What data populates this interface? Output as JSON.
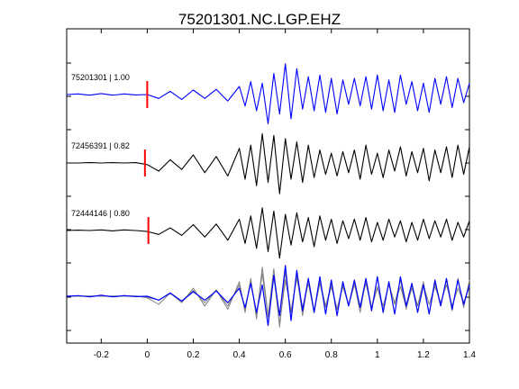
{
  "chart_data": {
    "type": "line",
    "title": "75201301.NC.LGP.EHZ",
    "xlabel": "",
    "ylabel": "",
    "xlim": [
      -0.35,
      1.4
    ],
    "xticks": [
      -0.2,
      0,
      0.2,
      0.4,
      0.6,
      0.8,
      1,
      1.2,
      1.4
    ],
    "xtick_labels": [
      "-0.2",
      "0",
      "0.2",
      "0.4",
      "0.6",
      "0.8",
      "1",
      "1.2",
      "1.4"
    ],
    "grid": false,
    "pick_marker": {
      "x": 0,
      "color": "#ff0000"
    },
    "colors": {
      "target": "#0000ff",
      "match": "#000000",
      "overlay_match": "#808080",
      "pick": "#ff0000"
    },
    "series": [
      {
        "name": "75201301 | 1.00",
        "label": "75201301 | 1.00",
        "color": "#0000ff",
        "x": [
          -0.35,
          -0.3,
          -0.25,
          -0.2,
          -0.15,
          -0.1,
          -0.05,
          0,
          0.05,
          0.1,
          0.15,
          0.2,
          0.25,
          0.3,
          0.35,
          0.4,
          0.425,
          0.45,
          0.475,
          0.5,
          0.525,
          0.55,
          0.575,
          0.6,
          0.625,
          0.65,
          0.675,
          0.7,
          0.725,
          0.75,
          0.775,
          0.8,
          0.825,
          0.85,
          0.875,
          0.9,
          0.925,
          0.95,
          0.975,
          1.0,
          1.025,
          1.05,
          1.075,
          1.1,
          1.125,
          1.15,
          1.175,
          1.2,
          1.225,
          1.25,
          1.275,
          1.3,
          1.325,
          1.35,
          1.375,
          1.4
        ],
        "y": [
          0.0,
          0.02,
          -0.02,
          0.03,
          -0.02,
          0.02,
          -0.01,
          0.0,
          -0.12,
          0.1,
          -0.15,
          0.14,
          -0.12,
          0.16,
          -0.2,
          0.25,
          -0.35,
          0.4,
          -0.5,
          0.35,
          -0.9,
          0.65,
          -0.6,
          0.95,
          -0.75,
          0.8,
          -0.45,
          0.55,
          -0.5,
          0.6,
          -0.55,
          0.5,
          -0.6,
          0.45,
          -0.3,
          0.5,
          -0.35,
          0.55,
          -0.45,
          0.6,
          -0.5,
          0.45,
          -0.55,
          0.6,
          -0.3,
          0.4,
          -0.5,
          0.35,
          -0.55,
          0.5,
          -0.3,
          0.55,
          -0.4,
          0.5,
          -0.25,
          0.35
        ]
      },
      {
        "name": "72456391 | 0.82",
        "label": "72456391 | 0.82",
        "color": "#000000",
        "x": [
          -0.35,
          -0.3,
          -0.25,
          -0.2,
          -0.15,
          -0.1,
          -0.05,
          0,
          0.05,
          0.1,
          0.15,
          0.2,
          0.25,
          0.3,
          0.35,
          0.4,
          0.425,
          0.45,
          0.475,
          0.5,
          0.525,
          0.55,
          0.575,
          0.6,
          0.625,
          0.65,
          0.675,
          0.7,
          0.725,
          0.75,
          0.775,
          0.8,
          0.825,
          0.85,
          0.875,
          0.9,
          0.925,
          0.95,
          0.975,
          1.0,
          1.025,
          1.05,
          1.075,
          1.1,
          1.125,
          1.15,
          1.175,
          1.2,
          1.225,
          1.25,
          1.275,
          1.3,
          1.325,
          1.35,
          1.375,
          1.4
        ],
        "y": [
          0.0,
          0.0,
          0.01,
          0.0,
          0.01,
          0.0,
          0.01,
          -0.05,
          -0.25,
          0.1,
          -0.2,
          0.25,
          -0.3,
          0.2,
          -0.4,
          0.45,
          -0.5,
          0.55,
          -0.7,
          0.9,
          -0.6,
          0.85,
          -0.95,
          0.75,
          -0.5,
          0.65,
          -0.6,
          0.55,
          -0.45,
          0.4,
          -0.35,
          0.3,
          -0.4,
          0.35,
          -0.3,
          0.4,
          -0.5,
          0.55,
          -0.35,
          0.3,
          -0.45,
          0.4,
          -0.25,
          0.5,
          -0.4,
          0.35,
          -0.3,
          0.45,
          -0.55,
          0.4,
          -0.3,
          0.5,
          -0.45,
          0.55,
          -0.35,
          0.5
        ]
      },
      {
        "name": "72444146 | 0.80",
        "label": "72444146 | 0.80",
        "color": "#000000",
        "x": [
          -0.35,
          -0.3,
          -0.25,
          -0.2,
          -0.15,
          -0.1,
          -0.05,
          0,
          0.05,
          0.1,
          0.15,
          0.2,
          0.25,
          0.3,
          0.35,
          0.4,
          0.425,
          0.45,
          0.475,
          0.5,
          0.525,
          0.55,
          0.575,
          0.6,
          0.625,
          0.65,
          0.675,
          0.7,
          0.725,
          0.75,
          0.775,
          0.8,
          0.825,
          0.85,
          0.875,
          0.9,
          0.925,
          0.95,
          0.975,
          1.0,
          1.025,
          1.05,
          1.075,
          1.1,
          1.125,
          1.15,
          1.175,
          1.2,
          1.225,
          1.25,
          1.275,
          1.3,
          1.325,
          1.35,
          1.375,
          1.4
        ],
        "y": [
          0.0,
          0.01,
          0.0,
          0.02,
          -0.01,
          0.02,
          0.0,
          -0.03,
          -0.12,
          0.08,
          -0.15,
          0.18,
          -0.2,
          0.2,
          -0.3,
          0.35,
          -0.4,
          0.45,
          -0.55,
          0.7,
          -0.65,
          0.6,
          -0.85,
          0.5,
          -0.45,
          0.55,
          -0.35,
          0.4,
          -0.5,
          0.45,
          -0.3,
          0.35,
          -0.4,
          0.3,
          -0.25,
          0.35,
          -0.3,
          0.4,
          -0.35,
          0.25,
          -0.3,
          0.35,
          -0.2,
          0.3,
          -0.35,
          0.25,
          -0.3,
          0.35,
          -0.25,
          0.3,
          -0.2,
          0.35,
          -0.3,
          0.25,
          -0.2,
          0.3
        ]
      }
    ]
  }
}
